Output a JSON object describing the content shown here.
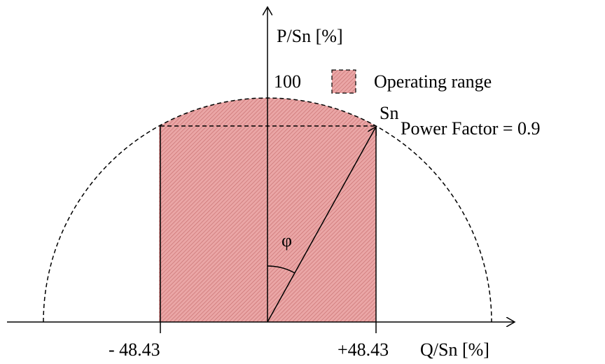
{
  "axes": {
    "y_label": "P/Sn [%]",
    "x_label": "Q/Sn [%]"
  },
  "ticks": {
    "top": "100",
    "left": "- 48.43",
    "right": "+48.43"
  },
  "legend": {
    "label": "Operating range"
  },
  "annotations": {
    "vector": "Sn",
    "power_factor": "Power Factor = 0.9",
    "angle": "φ"
  }
}
